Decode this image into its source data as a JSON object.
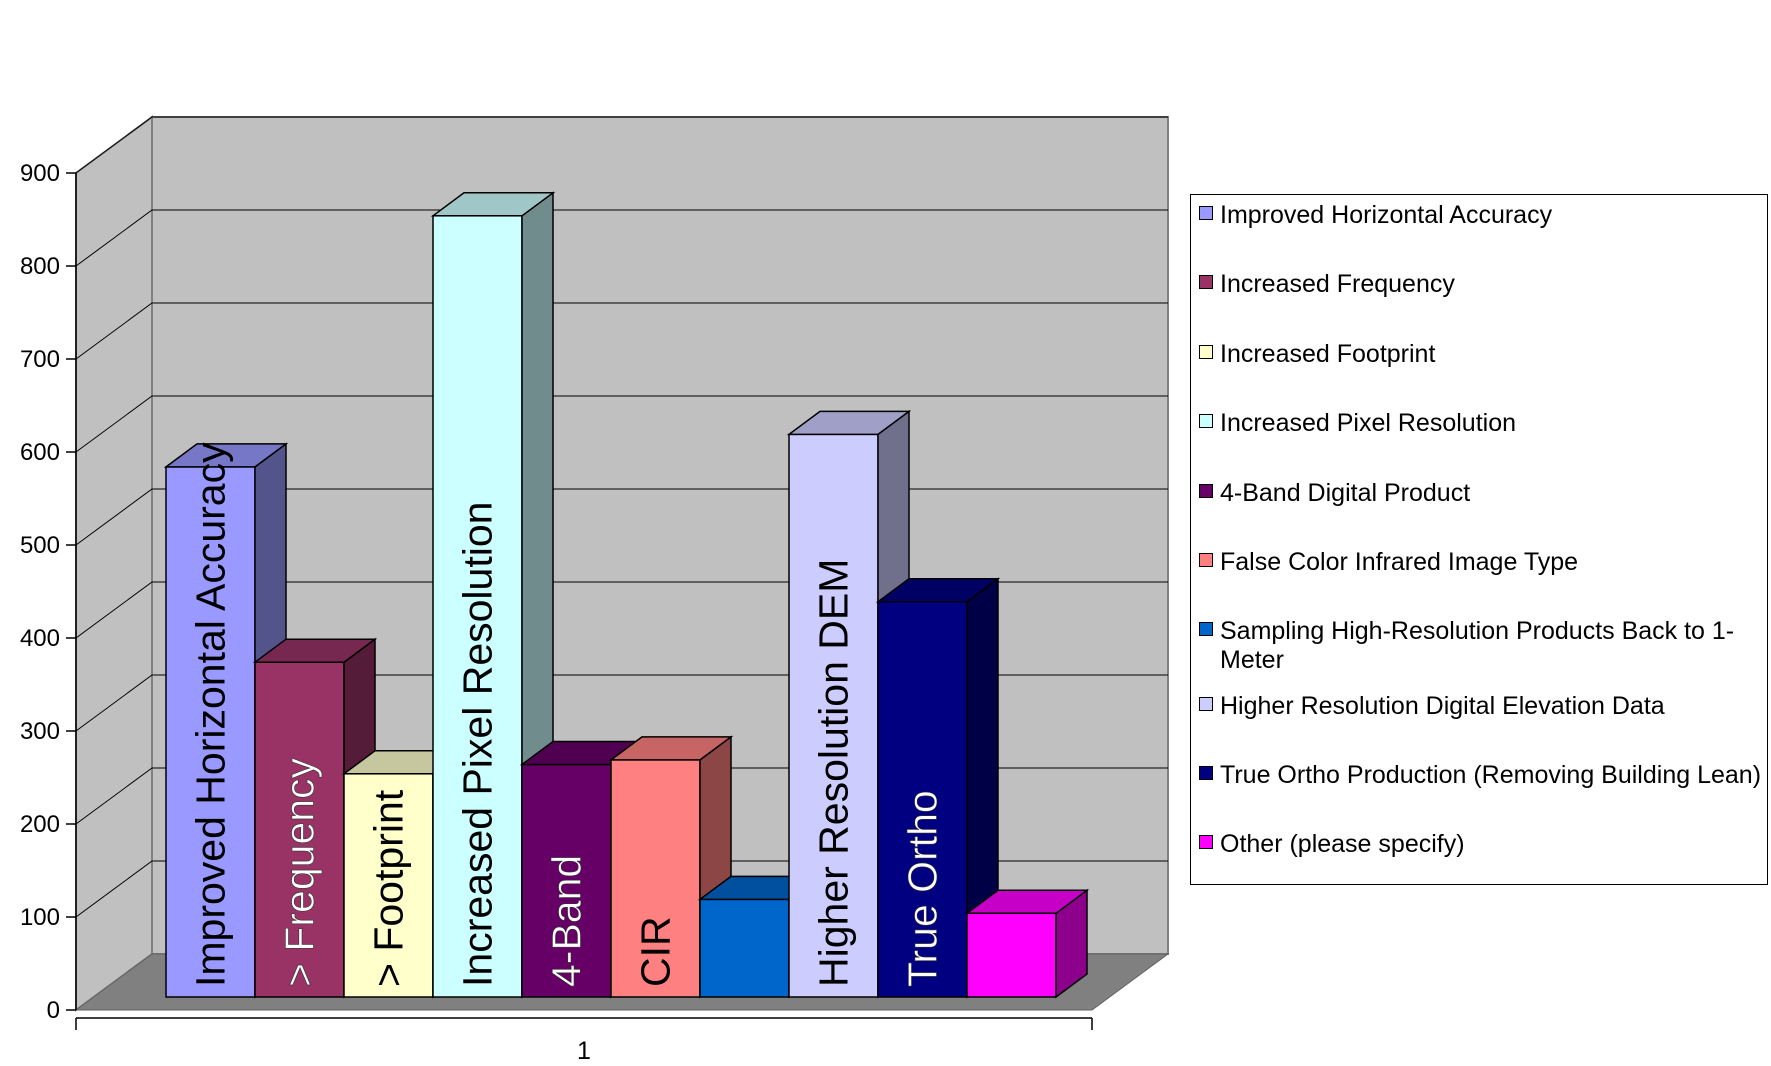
{
  "chart_data": {
    "type": "bar",
    "title": "",
    "xlabel": "",
    "ylabel": "",
    "categories": [
      "1"
    ],
    "ylim": [
      0,
      900
    ],
    "yticks": [
      0,
      100,
      200,
      300,
      400,
      500,
      600,
      700,
      800,
      900
    ],
    "grid": true,
    "legend_position": "right",
    "series": [
      {
        "name": "Improved Horizontal Accuracy",
        "bar_label": "Improved Horizontal Accuracy",
        "values": [
          570
        ],
        "color": "#9999ff",
        "label_color": "#000000"
      },
      {
        "name": "Increased Frequency",
        "bar_label": "> Frequency",
        "values": [
          360
        ],
        "color": "#993366",
        "label_color": "#ffffff"
      },
      {
        "name": "Increased Footprint",
        "bar_label": "> Footprint",
        "values": [
          240
        ],
        "color": "#ffffcc",
        "label_color": "#000000"
      },
      {
        "name": "Increased Pixel Resolution",
        "bar_label": "Increased Pixel Resolution",
        "values": [
          840
        ],
        "color": "#ccffff",
        "label_color": "#000000"
      },
      {
        "name": "4-Band Digital Product",
        "bar_label": "4-Band",
        "values": [
          250
        ],
        "color": "#660066",
        "label_color": "#ffffff"
      },
      {
        "name": "False Color Infrared Image Type",
        "bar_label": "CIR",
        "values": [
          255
        ],
        "color": "#ff8080",
        "label_color": "#000000"
      },
      {
        "name": "Sampling High-Resolution Products Back to 1-Meter",
        "bar_label": "",
        "values": [
          105
        ],
        "color": "#0066cc",
        "label_color": "#ffffff"
      },
      {
        "name": "Higher Resolution Digital Elevation Data",
        "bar_label": "Higher Resolution DEM",
        "values": [
          605
        ],
        "color": "#ccccff",
        "label_color": "#000000"
      },
      {
        "name": "True Ortho Production (Removing Building Lean)",
        "bar_label": "True Ortho",
        "values": [
          425
        ],
        "color": "#000080",
        "label_color": "#ffffff"
      },
      {
        "name": "Other (please specify)",
        "bar_label": "",
        "values": [
          90
        ],
        "color": "#ff00ff",
        "label_color": "#ffffff"
      }
    ]
  },
  "legend": {
    "items": [
      {
        "label": "Improved Horizontal Accuracy",
        "color": "#9999ff"
      },
      {
        "label": "Increased Frequency",
        "color": "#993366"
      },
      {
        "label": "Increased Footprint",
        "color": "#ffffcc"
      },
      {
        "label": "Increased Pixel Resolution",
        "color": "#ccffff"
      },
      {
        "label": "4-Band Digital Product",
        "color": "#660066"
      },
      {
        "label": "False Color Infrared Image Type",
        "color": "#ff8080"
      },
      {
        "label": "Sampling High-Resolution Products Back to 1-Meter",
        "color": "#0066cc"
      },
      {
        "label": "Higher Resolution Digital Elevation Data",
        "color": "#ccccff"
      },
      {
        "label": "True Ortho Production (Removing Building Lean)",
        "color": "#000080"
      },
      {
        "label": "Other (please specify)",
        "color": "#ff00ff"
      }
    ]
  },
  "colors": {
    "back_wall": "#c0c0c0",
    "side_wall": "#c0c0c0",
    "floor": "#808080",
    "grid": "#000000"
  }
}
